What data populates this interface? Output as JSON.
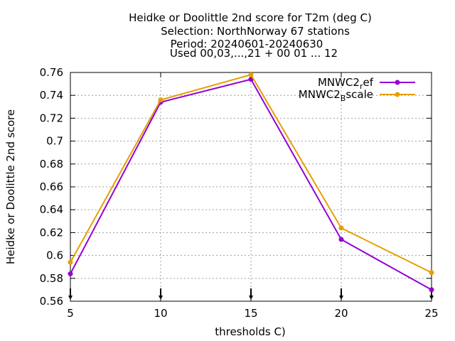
{
  "chart_data": {
    "type": "line",
    "title_lines": [
      "Heidke or Doolittle 2nd score  for T2m (deg C)",
      "Selection: NorthNorway     67 stations",
      "Period: 20240601-20240630",
      "Used 00,03,...,21 + 00 01 ... 12"
    ],
    "xlabel": "thresholds C)",
    "ylabel": "Heidke or Doolittle 2nd score",
    "x": [
      5,
      10,
      15,
      20,
      25
    ],
    "xlim": [
      5,
      25
    ],
    "ylim": [
      0.56,
      0.76
    ],
    "xticks": [
      "5",
      "10",
      "15",
      "20",
      "25"
    ],
    "yticks": [
      "0.56",
      "0.58",
      "0.6",
      "0.62",
      "0.64",
      "0.66",
      "0.68",
      "0.7",
      "0.72",
      "0.74",
      "0.76"
    ],
    "grid": true,
    "legend_position": "top-right",
    "series": [
      {
        "name": "MNWC2_ref",
        "legend_main": "MNWC2",
        "legend_sub": "r",
        "legend_tail": "ef",
        "color": "#9400d3",
        "values": [
          0.584,
          0.734,
          0.754,
          0.614,
          0.57
        ]
      },
      {
        "name": "MNWC2_Bscale",
        "legend_main": "MNWC2",
        "legend_sub": "B",
        "legend_tail": "scale",
        "color": "#e69f00",
        "values": [
          0.594,
          0.736,
          0.758,
          0.624,
          0.585
        ]
      }
    ]
  }
}
